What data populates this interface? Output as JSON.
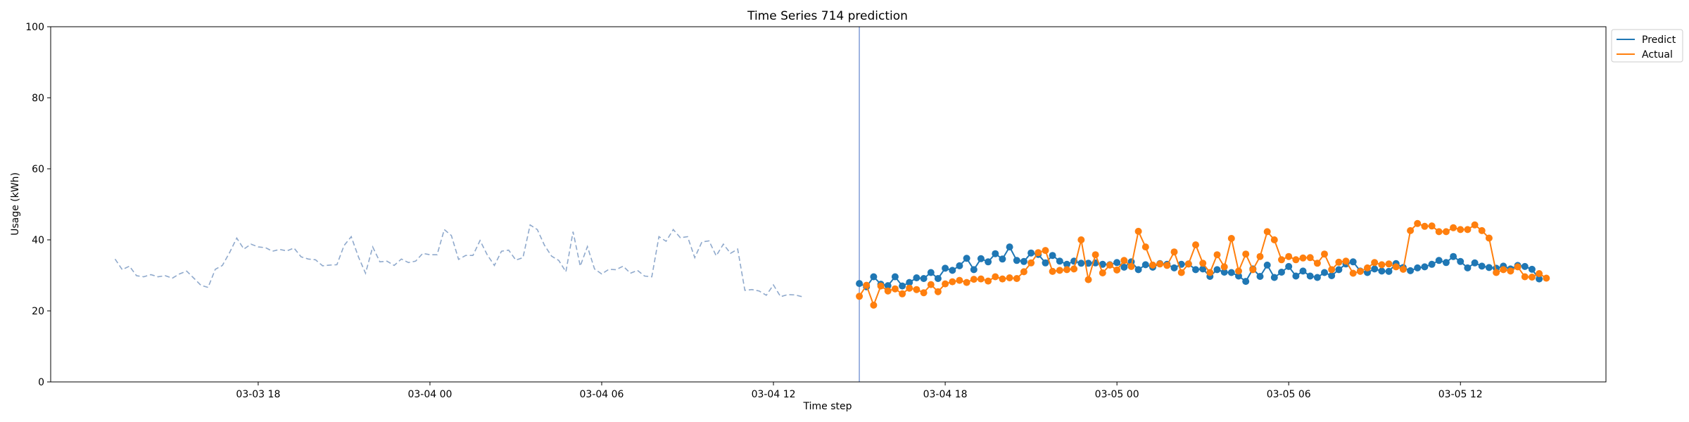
{
  "chart_data": {
    "type": "line",
    "title": "Time Series 714 prediction",
    "xlabel": "Time step",
    "ylabel": "Usage (kWh)",
    "ylim": [
      0,
      100
    ],
    "yticks": [
      0,
      20,
      40,
      60,
      80,
      100
    ],
    "xlim": [
      "2024-03-03 10:45",
      "2024-03-05 17:05"
    ],
    "xticks": [
      {
        "t": "2024-03-03 18:00",
        "label": "03-03 18"
      },
      {
        "t": "2024-03-04 00:00",
        "label": "03-04 00"
      },
      {
        "t": "2024-03-04 06:00",
        "label": "03-04 06"
      },
      {
        "t": "2024-03-04 12:00",
        "label": "03-04 12"
      },
      {
        "t": "2024-03-04 18:00",
        "label": "03-04 18"
      },
      {
        "t": "2024-03-05 00:00",
        "label": "03-05 00"
      },
      {
        "t": "2024-03-05 06:00",
        "label": "03-05 06"
      },
      {
        "t": "2024-03-05 12:00",
        "label": "03-05 12"
      }
    ],
    "forecast_start": "2024-03-04 15:00",
    "grid": false,
    "legend_position": "outside-top-right",
    "history": {
      "start": "2024-03-03 13:00",
      "step_minutes": 15,
      "color": "#8fa9cc",
      "style": "dashed",
      "values": [
        34.6,
        31.6,
        32.6,
        29.9,
        29.6,
        30.2,
        29.6,
        29.9,
        29.2,
        30.4,
        31.2,
        29.2,
        27.2,
        26.6,
        31.7,
        32.8,
        36.4,
        40.5,
        37.4,
        38.8,
        38.0,
        37.8,
        36.8,
        37.3,
        36.9,
        37.7,
        35.2,
        34.6,
        34.4,
        32.7,
        32.9,
        33.0,
        38.4,
        40.9,
        35.2,
        30.6,
        38.0,
        33.8,
        34.0,
        32.8,
        34.6,
        33.6,
        34.0,
        36.2,
        35.8,
        35.8,
        42.9,
        41.2,
        34.5,
        35.6,
        35.6,
        39.8,
        35.8,
        32.8,
        36.8,
        37.1,
        34.3,
        35.0,
        44.2,
        42.9,
        38.5,
        35.4,
        34.2,
        31.0,
        42.3,
        32.6,
        38.1,
        31.8,
        30.4,
        31.7,
        31.6,
        32.6,
        30.6,
        31.4,
        29.8,
        29.6,
        40.9,
        39.6,
        42.9,
        40.6,
        40.9,
        35.0,
        39.4,
        39.7,
        35.5,
        38.8,
        36.2,
        37.4,
        25.8,
        26.0,
        25.6,
        24.4,
        27.3,
        24.0,
        24.6,
        24.5,
        24.0
      ]
    },
    "series": [
      {
        "name": "Predict",
        "color": "#1f77b4",
        "start": "2024-03-04 15:00",
        "step_minutes": 15,
        "values": [
          27.7,
          26.8,
          29.6,
          27.5,
          27.1,
          29.6,
          27.0,
          28.0,
          29.3,
          29.1,
          30.8,
          29.1,
          32.0,
          31.4,
          32.7,
          34.8,
          31.6,
          34.7,
          33.8,
          36.1,
          34.6,
          38.0,
          34.2,
          33.9,
          36.3,
          35.9,
          33.5,
          35.6,
          34.0,
          33.1,
          34.0,
          33.4,
          33.4,
          33.5,
          33.1,
          33.0,
          33.6,
          32.3,
          33.8,
          31.6,
          33.0,
          32.3,
          33.3,
          33.1,
          32.1,
          33.1,
          33.2,
          31.6,
          31.8,
          29.7,
          31.6,
          30.9,
          30.8,
          29.8,
          28.3,
          31.8,
          29.7,
          32.9,
          29.4,
          30.9,
          32.5,
          29.8,
          31.2,
          29.8,
          29.4,
          30.8,
          29.9,
          31.6,
          33.2,
          33.8,
          31.2,
          30.8,
          31.8,
          31.2,
          31.1,
          33.3,
          32.2,
          31.3,
          32.1,
          32.4,
          33.1,
          34.2,
          33.6,
          35.3,
          33.9,
          32.1,
          33.5,
          32.6,
          32.2,
          32.0,
          32.6,
          31.8,
          32.8,
          32.5,
          31.7,
          29.0
        ]
      },
      {
        "name": "Actual",
        "color": "#ff7f0e",
        "start": "2024-03-04 15:00",
        "step_minutes": 15,
        "values": [
          24.1,
          27.2,
          21.6,
          27.0,
          25.6,
          26.2,
          24.8,
          26.4,
          26.0,
          25.1,
          27.4,
          25.4,
          27.6,
          28.2,
          28.6,
          28.0,
          28.9,
          29.0,
          28.4,
          29.6,
          29.0,
          29.3,
          29.1,
          31.0,
          33.5,
          36.4,
          37.0,
          31.1,
          31.4,
          31.6,
          31.8,
          40.0,
          28.8,
          35.8,
          30.7,
          32.9,
          31.5,
          34.2,
          32.5,
          42.4,
          38.0,
          32.9,
          33.2,
          32.8,
          36.6,
          30.8,
          33.2,
          38.6,
          33.4,
          30.8,
          35.8,
          32.4,
          40.4,
          31.2,
          36.0,
          31.6,
          35.3,
          42.3,
          40.0,
          34.4,
          35.3,
          34.4,
          34.9,
          35.0,
          33.4,
          36.0,
          31.6,
          33.7,
          34.0,
          30.6,
          31.1,
          32.1,
          33.6,
          33.0,
          33.2,
          32.4,
          31.7,
          42.6,
          44.6,
          43.8,
          43.9,
          42.3,
          42.3,
          43.4,
          42.9,
          42.9,
          44.2,
          42.6,
          40.5,
          30.8,
          31.6,
          31.2,
          32.4,
          29.6,
          29.5,
          30.5,
          29.2
        ]
      }
    ]
  }
}
